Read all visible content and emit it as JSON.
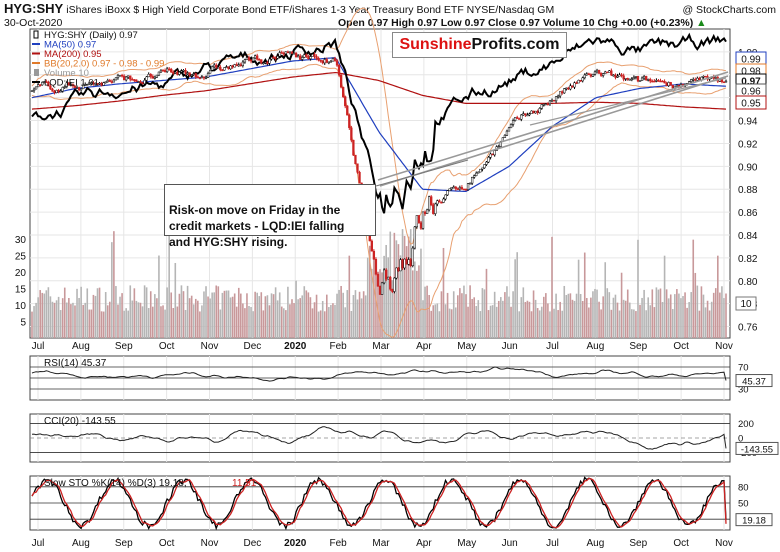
{
  "header": {
    "ticker": "HYG:SHY",
    "description": "iShares iBoxx $ High Yield Corporate Bond ETF/iShares 1-3 Year Treasury Bond ETF  NYSE/Nasdaq GM",
    "watermark": "@ StockCharts.com",
    "date": "30-Oct-2020",
    "quote": "Open 0.97  High 0.97  Low 0.97  Close 0.97  Volume 10  Chg +0.00 (+0.23%)",
    "quote_arrow": "▲"
  },
  "logo": {
    "part1": "Sunshine",
    "part2": "Profits.com"
  },
  "legend": [
    {
      "label": "HYG:SHY (Daily) 0.97",
      "color": "#000000",
      "marker": "candle"
    },
    {
      "label": "MA(50) 0.97",
      "color": "#1f3fbf",
      "marker": "line"
    },
    {
      "label": "MA(200) 0.95",
      "color": "#b01010",
      "marker": "line"
    },
    {
      "label": "BB(20,2.0) 0.97 - 0.98 - 0.99",
      "color": "#e07a2a",
      "marker": "line"
    },
    {
      "label": "Volume 10",
      "color": "#999999",
      "marker": "bar"
    },
    {
      "label": "LQD:IEI 1.01",
      "color": "#000000",
      "marker": "line"
    }
  ],
  "annotation": "Risk-on move on Friday in the\ncredit markets - LQD:IEI falling\nand HYG:SHY rising.",
  "months": [
    "Jul",
    "Aug",
    "Sep",
    "Oct",
    "Nov",
    "Dec",
    "2020",
    "Feb",
    "Mar",
    "Apr",
    "May",
    "Jun",
    "Jul",
    "Aug",
    "Sep",
    "Oct",
    "Nov"
  ],
  "rsi": {
    "label": "RSI(14) 45.37",
    "value": "45.37",
    "ticks": [
      "70",
      "50",
      "30"
    ]
  },
  "cci": {
    "label": "CCI(20) -143.55",
    "value": "-143.55",
    "ticks": [
      "200",
      "0",
      "-200"
    ]
  },
  "sto": {
    "label": "Slow STO %K(14) %D(3) 19.18,",
    "d_value": "11.51",
    "value": "19.18",
    "ticks": [
      "80",
      "50",
      "20"
    ]
  },
  "colors": {
    "up": "#ffffff",
    "down": "#cc2222",
    "ma50": "#1f3fbf",
    "ma200": "#b01010",
    "bb": "#e8a070",
    "trend": "#999999",
    "grid": "#e6e6e6",
    "pos_fill": "#5a8a5a",
    "neg_fill": "#8a4a40"
  },
  "chart_data": [
    {
      "type": "line",
      "title": "HYG:SHY (Daily)",
      "y_ticks": [
        1.0,
        0.98,
        0.96,
        0.94,
        0.92,
        0.9,
        0.88,
        0.86,
        0.84,
        0.82,
        0.8,
        0.78,
        0.76
      ],
      "ylim": [
        0.75,
        1.02
      ],
      "x": [
        "Jul-19",
        "Aug-19",
        "Sep-19",
        "Oct-19",
        "Nov-19",
        "Dec-19",
        "Jan-20",
        "Feb-20",
        "Mar-20",
        "Apr-20",
        "May-20",
        "Jun-20",
        "Jul-20",
        "Aug-20",
        "Sep-20",
        "Oct-20",
        "Oct-30-20"
      ],
      "series": [
        {
          "name": "HYG:SHY",
          "values": [
            0.965,
            0.972,
            0.975,
            0.978,
            0.982,
            0.99,
            0.998,
            0.992,
            0.79,
            0.86,
            0.885,
            0.93,
            0.96,
            0.98,
            0.97,
            0.975,
            0.97
          ]
        },
        {
          "name": "MA(50)",
          "values": [
            0.96,
            0.968,
            0.972,
            0.975,
            0.978,
            0.985,
            0.992,
            0.995,
            0.93,
            0.88,
            0.878,
            0.9,
            0.935,
            0.96,
            0.968,
            0.972,
            0.97
          ]
        },
        {
          "name": "MA(200)",
          "values": [
            0.95,
            0.953,
            0.957,
            0.962,
            0.966,
            0.972,
            0.978,
            0.982,
            0.975,
            0.962,
            0.955,
            0.955,
            0.955,
            0.956,
            0.955,
            0.952,
            0.95
          ]
        },
        {
          "name": "LQD:IEI",
          "values": [
            0.94,
            0.955,
            0.968,
            0.97,
            0.985,
            0.993,
            1.0,
            1.008,
            0.87,
            0.935,
            0.96,
            0.975,
            0.99,
            1.01,
            1.0,
            1.005,
            1.01
          ]
        }
      ],
      "price_tags": [
        0.99,
        0.98,
        0.97,
        0.96,
        0.95
      ]
    },
    {
      "type": "bar",
      "title": "Volume",
      "y_ticks": [
        30,
        25,
        20,
        15,
        10,
        5
      ],
      "last_value": 10
    },
    {
      "type": "line",
      "title": "RSI(14)",
      "y_ticks": [
        70,
        50,
        30
      ],
      "ylim": [
        10,
        90
      ],
      "last_value": 45.37
    },
    {
      "type": "line",
      "title": "CCI(20)",
      "y_ticks": [
        200,
        0,
        -200
      ],
      "ylim": [
        -330,
        330
      ],
      "last_value": -143.55
    },
    {
      "type": "line",
      "title": "Slow STO %K(14) %D(3)",
      "y_ticks": [
        80,
        50,
        20
      ],
      "ylim": [
        0,
        100
      ],
      "series": [
        {
          "name": "%K",
          "last": 19.18
        },
        {
          "name": "%D",
          "last": 11.51
        }
      ]
    }
  ]
}
